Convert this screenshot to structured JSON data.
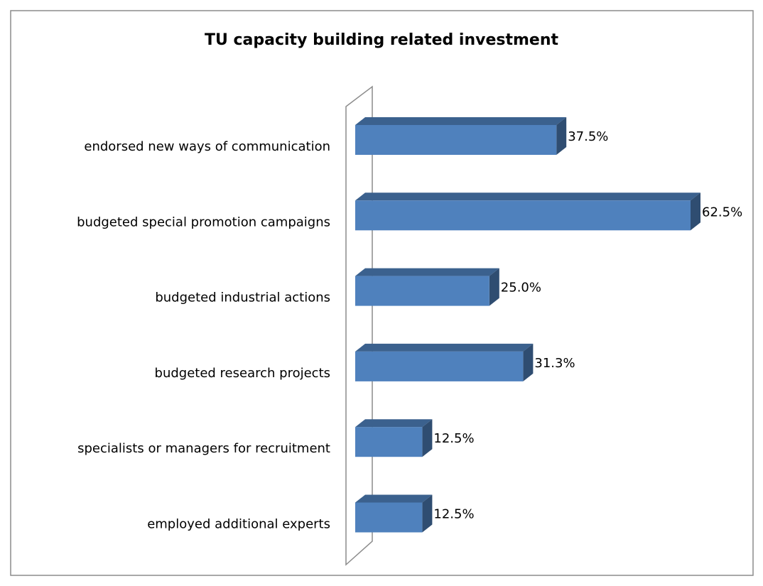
{
  "chart_data": {
    "type": "bar3d_horizontal",
    "title": "TU capacity building related investment",
    "categories": [
      "endorsed new ways of communication",
      "budgeted special promotion campaigns",
      "budgeted industrial actions",
      "budgeted research projects",
      "specialists or managers for recruitment",
      "employed additional  experts"
    ],
    "values": [
      37.5,
      62.5,
      25.0,
      31.3,
      12.5,
      12.5
    ],
    "value_labels": [
      "37.5%",
      "62.5%",
      "25.0%",
      "31.3%",
      "12.5%",
      "12.5%"
    ],
    "color": "#4f81bd"
  }
}
